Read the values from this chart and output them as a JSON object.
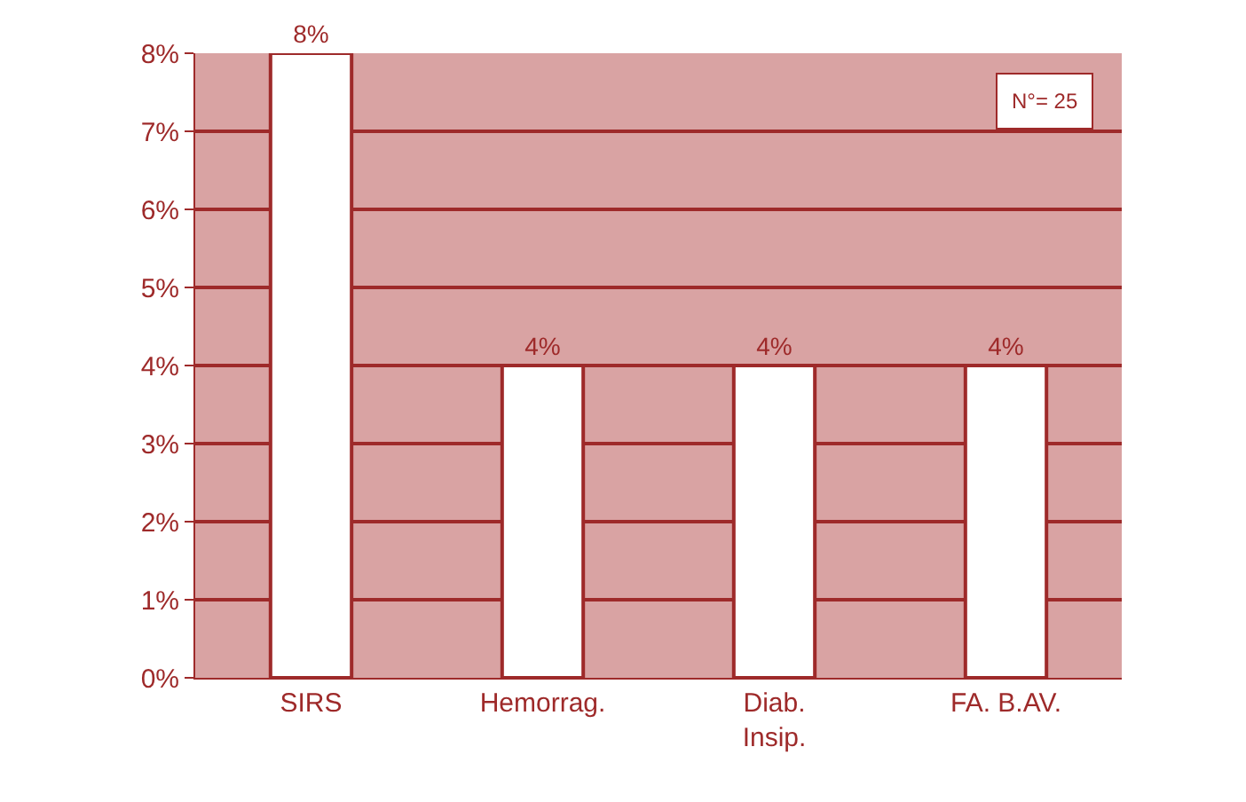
{
  "chart_data": {
    "type": "bar",
    "categories": [
      "SIRS",
      "Hemorrag.",
      "Diab.\nInsip.",
      "FA. B.AV."
    ],
    "values": [
      8,
      4,
      4,
      4
    ],
    "value_labels": [
      "8%",
      "4%",
      "4%",
      "4%"
    ],
    "color": "#ffffff",
    "ylim": [
      0,
      8
    ],
    "yticks": [
      {
        "value": 0,
        "label": "0%"
      },
      {
        "value": 1,
        "label": "1%"
      },
      {
        "value": 2,
        "label": "2%"
      },
      {
        "value": 3,
        "label": "3%"
      },
      {
        "value": 4,
        "label": "4%"
      },
      {
        "value": 5,
        "label": "5%"
      },
      {
        "value": 6,
        "label": "6%"
      },
      {
        "value": 7,
        "label": "7%"
      },
      {
        "value": 8,
        "label": "8%"
      }
    ],
    "grid": "y",
    "annotations": [
      "N°= 25"
    ]
  }
}
